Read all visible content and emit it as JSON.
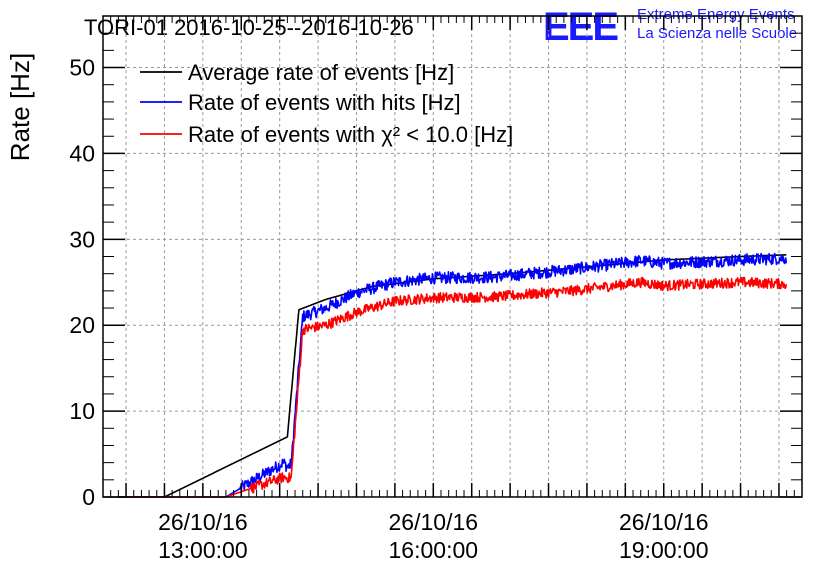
{
  "title": "TORI-01 2016-10-25--2016-10-26",
  "logo": {
    "letters": "EEE",
    "line1": "Extreme Energy Events",
    "line2": "La Scienza nelle Scuole",
    "color": "#1a1aff"
  },
  "chart_data": {
    "type": "line",
    "ylabel": "Rate [Hz]",
    "xlabel": "",
    "ylim": [
      0,
      56
    ],
    "yticks": [
      "0",
      "10",
      "20",
      "30",
      "40",
      "50"
    ],
    "xlim_hours": [
      11.7,
      20.8
    ],
    "xticks": [
      {
        "hour": 13,
        "date": "26/10/16",
        "time": "13:00:00"
      },
      {
        "hour": 16,
        "date": "26/10/16",
        "time": "16:00:00"
      },
      {
        "hour": 19,
        "date": "26/10/16",
        "time": "19:00:00"
      }
    ],
    "grid": true,
    "legend_position": "top-left",
    "series": [
      {
        "name": "Average rate of events [Hz]",
        "color": "#000000",
        "noise": 0,
        "points": [
          [
            11.9,
            0
          ],
          [
            12.5,
            0
          ],
          [
            14.1,
            7.0
          ],
          [
            14.25,
            21.8
          ],
          [
            14.6,
            23.0
          ],
          [
            15.2,
            24.5
          ],
          [
            16.0,
            25.4
          ],
          [
            17.0,
            26.0
          ],
          [
            18.0,
            26.8
          ],
          [
            19.0,
            27.6
          ],
          [
            20.0,
            28.0
          ],
          [
            20.6,
            28.2
          ]
        ]
      },
      {
        "name": "Rate of events with hits [Hz]",
        "color": "#0000ff",
        "noise": 0.7,
        "points": [
          [
            11.9,
            0
          ],
          [
            13.3,
            0
          ],
          [
            14.05,
            4.0
          ],
          [
            14.1,
            3.5
          ],
          [
            14.15,
            3.8
          ],
          [
            14.3,
            21.0
          ],
          [
            14.6,
            22.0
          ],
          [
            15.0,
            23.8
          ],
          [
            15.5,
            25.0
          ],
          [
            16.0,
            25.5
          ],
          [
            16.8,
            25.6
          ],
          [
            17.8,
            26.5
          ],
          [
            18.7,
            27.5
          ],
          [
            19.0,
            27.2
          ],
          [
            20.0,
            27.6
          ],
          [
            20.6,
            27.8
          ]
        ]
      },
      {
        "name": "Rate of events with χ² < 10.0 [Hz]",
        "color": "#ff0000",
        "noise": 0.6,
        "points": [
          [
            11.9,
            0
          ],
          [
            13.3,
            0
          ],
          [
            14.05,
            2.3
          ],
          [
            14.15,
            2.2
          ],
          [
            14.3,
            19.5
          ],
          [
            14.6,
            20.0
          ],
          [
            15.0,
            21.5
          ],
          [
            15.5,
            22.8
          ],
          [
            16.0,
            23.2
          ],
          [
            16.8,
            23.3
          ],
          [
            17.8,
            24.0
          ],
          [
            18.7,
            25.0
          ],
          [
            19.0,
            24.6
          ],
          [
            20.0,
            25.0
          ],
          [
            20.6,
            24.8
          ]
        ]
      }
    ]
  }
}
